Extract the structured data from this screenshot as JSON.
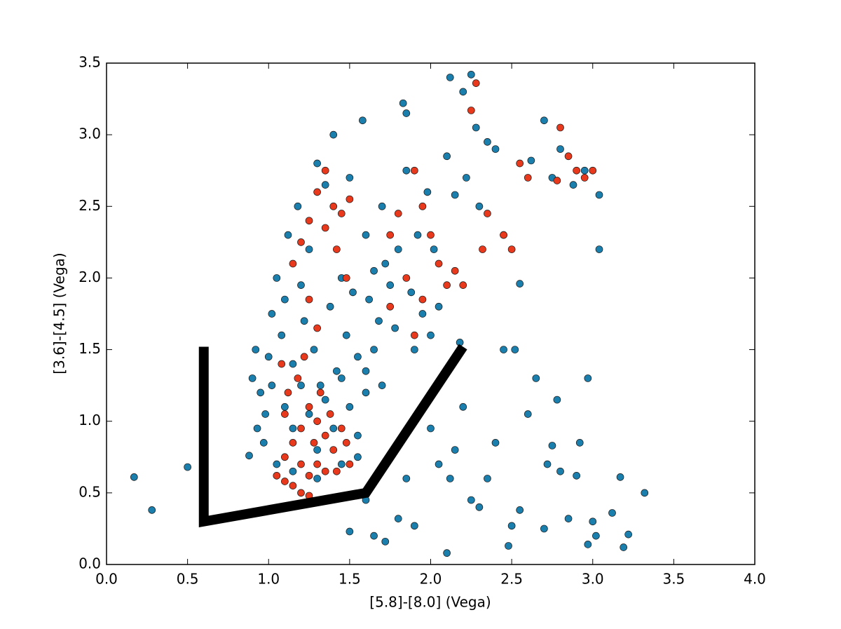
{
  "chart_data": {
    "type": "scatter",
    "xlabel": "[5.8]-[8.0] (Vega)",
    "ylabel": "[3.6]-[4.5] (Vega)",
    "xlim": [
      0,
      4
    ],
    "ylim": [
      0,
      3.5
    ],
    "xticks": [
      {
        "value": 0,
        "label": "0.0"
      },
      {
        "value": 0.5,
        "label": "0.5"
      },
      {
        "value": 1,
        "label": "1.0"
      },
      {
        "value": 1.5,
        "label": "1.5"
      },
      {
        "value": 2,
        "label": "2.0"
      },
      {
        "value": 2.5,
        "label": "2.5"
      },
      {
        "value": 3,
        "label": "3.0"
      },
      {
        "value": 3.5,
        "label": "3.5"
      },
      {
        "value": 4,
        "label": "4.0"
      }
    ],
    "yticks": [
      {
        "value": 0,
        "label": "0.0"
      },
      {
        "value": 0.5,
        "label": "0.5"
      },
      {
        "value": 1,
        "label": "1.0"
      },
      {
        "value": 1.5,
        "label": "1.5"
      },
      {
        "value": 2,
        "label": "2.0"
      },
      {
        "value": 2.5,
        "label": "2.5"
      },
      {
        "value": 3,
        "label": "3.0"
      },
      {
        "value": 3.5,
        "label": "3.5"
      }
    ],
    "series": [
      {
        "mode": "markers",
        "color": "#1b7fae",
        "x": [
          0.17,
          0.28,
          0.5,
          0.88,
          0.92,
          0.9,
          0.95,
          0.93,
          0.97,
          1.0,
          1.02,
          1.05,
          1.08,
          1.1,
          1.12,
          1.15,
          1.18,
          1.2,
          1.22,
          1.25,
          1.28,
          1.3,
          1.32,
          1.35,
          1.38,
          1.4,
          1.42,
          1.45,
          1.48,
          1.5,
          1.52,
          1.55,
          1.58,
          1.6,
          1.62,
          1.65,
          1.68,
          1.7,
          1.72,
          1.75,
          1.78,
          1.8,
          1.83,
          1.85,
          1.85,
          1.88,
          1.9,
          1.92,
          1.95,
          1.98,
          2.0,
          2.02,
          2.05,
          2.1,
          2.12,
          2.15,
          2.18,
          2.2,
          2.22,
          2.25,
          2.28,
          2.3,
          2.35,
          2.4,
          2.45,
          2.55,
          2.62,
          2.7,
          2.75,
          2.8,
          2.88,
          2.95,
          3.04,
          3.04,
          1.6,
          1.5,
          1.65,
          1.72,
          1.8,
          1.85,
          1.9,
          2.0,
          2.05,
          2.1,
          2.12,
          2.15,
          2.2,
          2.25,
          2.3,
          2.35,
          2.4,
          2.45,
          2.48,
          2.5,
          2.52,
          2.55,
          2.6,
          2.65,
          2.7,
          2.72,
          2.75,
          2.78,
          2.8,
          2.85,
          2.9,
          2.92,
          2.97,
          3.0,
          3.02,
          3.12,
          3.17,
          3.19,
          3.22,
          3.32,
          2.97,
          1.1,
          1.15,
          1.2,
          1.25,
          1.3,
          1.35,
          1.4,
          1.45,
          1.5,
          1.55,
          1.6,
          1.05,
          1.15,
          1.3,
          1.45,
          1.55,
          0.98,
          1.02,
          1.6,
          1.65,
          1.7
        ],
        "values": [
          0.61,
          0.38,
          0.68,
          0.76,
          1.5,
          1.3,
          1.2,
          0.95,
          0.85,
          1.45,
          1.75,
          2.0,
          1.6,
          1.85,
          2.3,
          1.4,
          2.5,
          1.95,
          1.7,
          2.2,
          1.5,
          2.8,
          1.25,
          2.65,
          1.8,
          3.0,
          1.35,
          2.0,
          1.6,
          2.7,
          1.9,
          1.45,
          3.1,
          2.3,
          1.85,
          2.05,
          1.7,
          2.5,
          2.1,
          1.95,
          1.65,
          2.2,
          3.22,
          3.15,
          2.75,
          1.9,
          1.5,
          2.3,
          1.75,
          2.6,
          1.6,
          2.2,
          1.8,
          2.85,
          3.4,
          2.58,
          1.55,
          3.3,
          2.7,
          3.42,
          3.05,
          2.5,
          2.95,
          2.9,
          2.3,
          1.96,
          2.82,
          3.1,
          2.7,
          2.9,
          2.65,
          2.75,
          2.58,
          2.2,
          0.45,
          0.23,
          0.2,
          0.16,
          0.32,
          0.6,
          0.27,
          0.95,
          0.7,
          0.08,
          0.6,
          0.8,
          1.1,
          0.45,
          0.4,
          0.6,
          0.85,
          1.5,
          0.13,
          0.27,
          1.5,
          0.38,
          1.05,
          1.3,
          0.25,
          0.7,
          0.83,
          1.15,
          0.65,
          0.32,
          0.62,
          0.85,
          1.3,
          0.3,
          0.2,
          0.36,
          0.61,
          0.12,
          0.21,
          0.5,
          0.14,
          1.1,
          0.95,
          1.25,
          1.05,
          0.8,
          1.15,
          0.95,
          1.3,
          1.1,
          0.9,
          1.2,
          0.7,
          0.65,
          0.6,
          0.7,
          0.75,
          1.05,
          1.25,
          1.35,
          1.5,
          1.25
        ]
      },
      {
        "mode": "markers",
        "color": "#e8391d",
        "x": [
          1.05,
          1.1,
          1.15,
          1.2,
          1.25,
          1.1,
          1.15,
          1.2,
          1.25,
          1.3,
          1.35,
          1.4,
          1.45,
          1.5,
          1.18,
          1.22,
          1.12,
          1.3,
          1.38,
          1.42,
          1.48,
          1.2,
          1.28,
          1.35,
          1.08,
          1.1,
          1.25,
          1.32,
          1.15,
          1.2,
          1.25,
          1.3,
          1.35,
          1.4,
          1.45,
          1.5,
          1.35,
          1.42,
          1.48,
          1.25,
          1.3,
          1.85,
          1.9,
          1.95,
          1.8,
          1.75,
          2.0,
          2.05,
          2.1,
          2.15,
          2.2,
          2.25,
          2.28,
          2.32,
          2.35,
          2.45,
          2.5,
          2.55,
          2.6,
          2.8,
          2.85,
          2.9,
          2.95,
          3.0,
          2.78,
          1.75,
          1.9,
          1.95
        ],
        "values": [
          0.62,
          0.58,
          0.55,
          0.5,
          0.48,
          0.75,
          0.85,
          0.95,
          1.1,
          1.0,
          0.9,
          0.8,
          0.95,
          0.7,
          1.3,
          1.45,
          1.2,
          0.7,
          1.05,
          0.65,
          0.85,
          0.7,
          0.85,
          0.65,
          1.4,
          1.05,
          0.62,
          1.2,
          2.1,
          2.25,
          2.4,
          2.6,
          2.75,
          2.5,
          2.45,
          2.55,
          2.35,
          2.2,
          2.0,
          1.85,
          1.65,
          2.0,
          2.75,
          2.5,
          2.45,
          2.3,
          2.3,
          2.1,
          1.95,
          2.05,
          1.95,
          3.17,
          3.36,
          2.2,
          2.45,
          2.3,
          2.2,
          2.8,
          2.7,
          3.05,
          2.85,
          2.75,
          2.7,
          2.75,
          2.68,
          1.8,
          1.6,
          1.85
        ]
      },
      {
        "mode": "line",
        "color": "#000000",
        "x": [
          0.6,
          0.6,
          1.6,
          2.2
        ],
        "values": [
          1.52,
          0.3,
          0.5,
          1.52
        ]
      }
    ]
  }
}
